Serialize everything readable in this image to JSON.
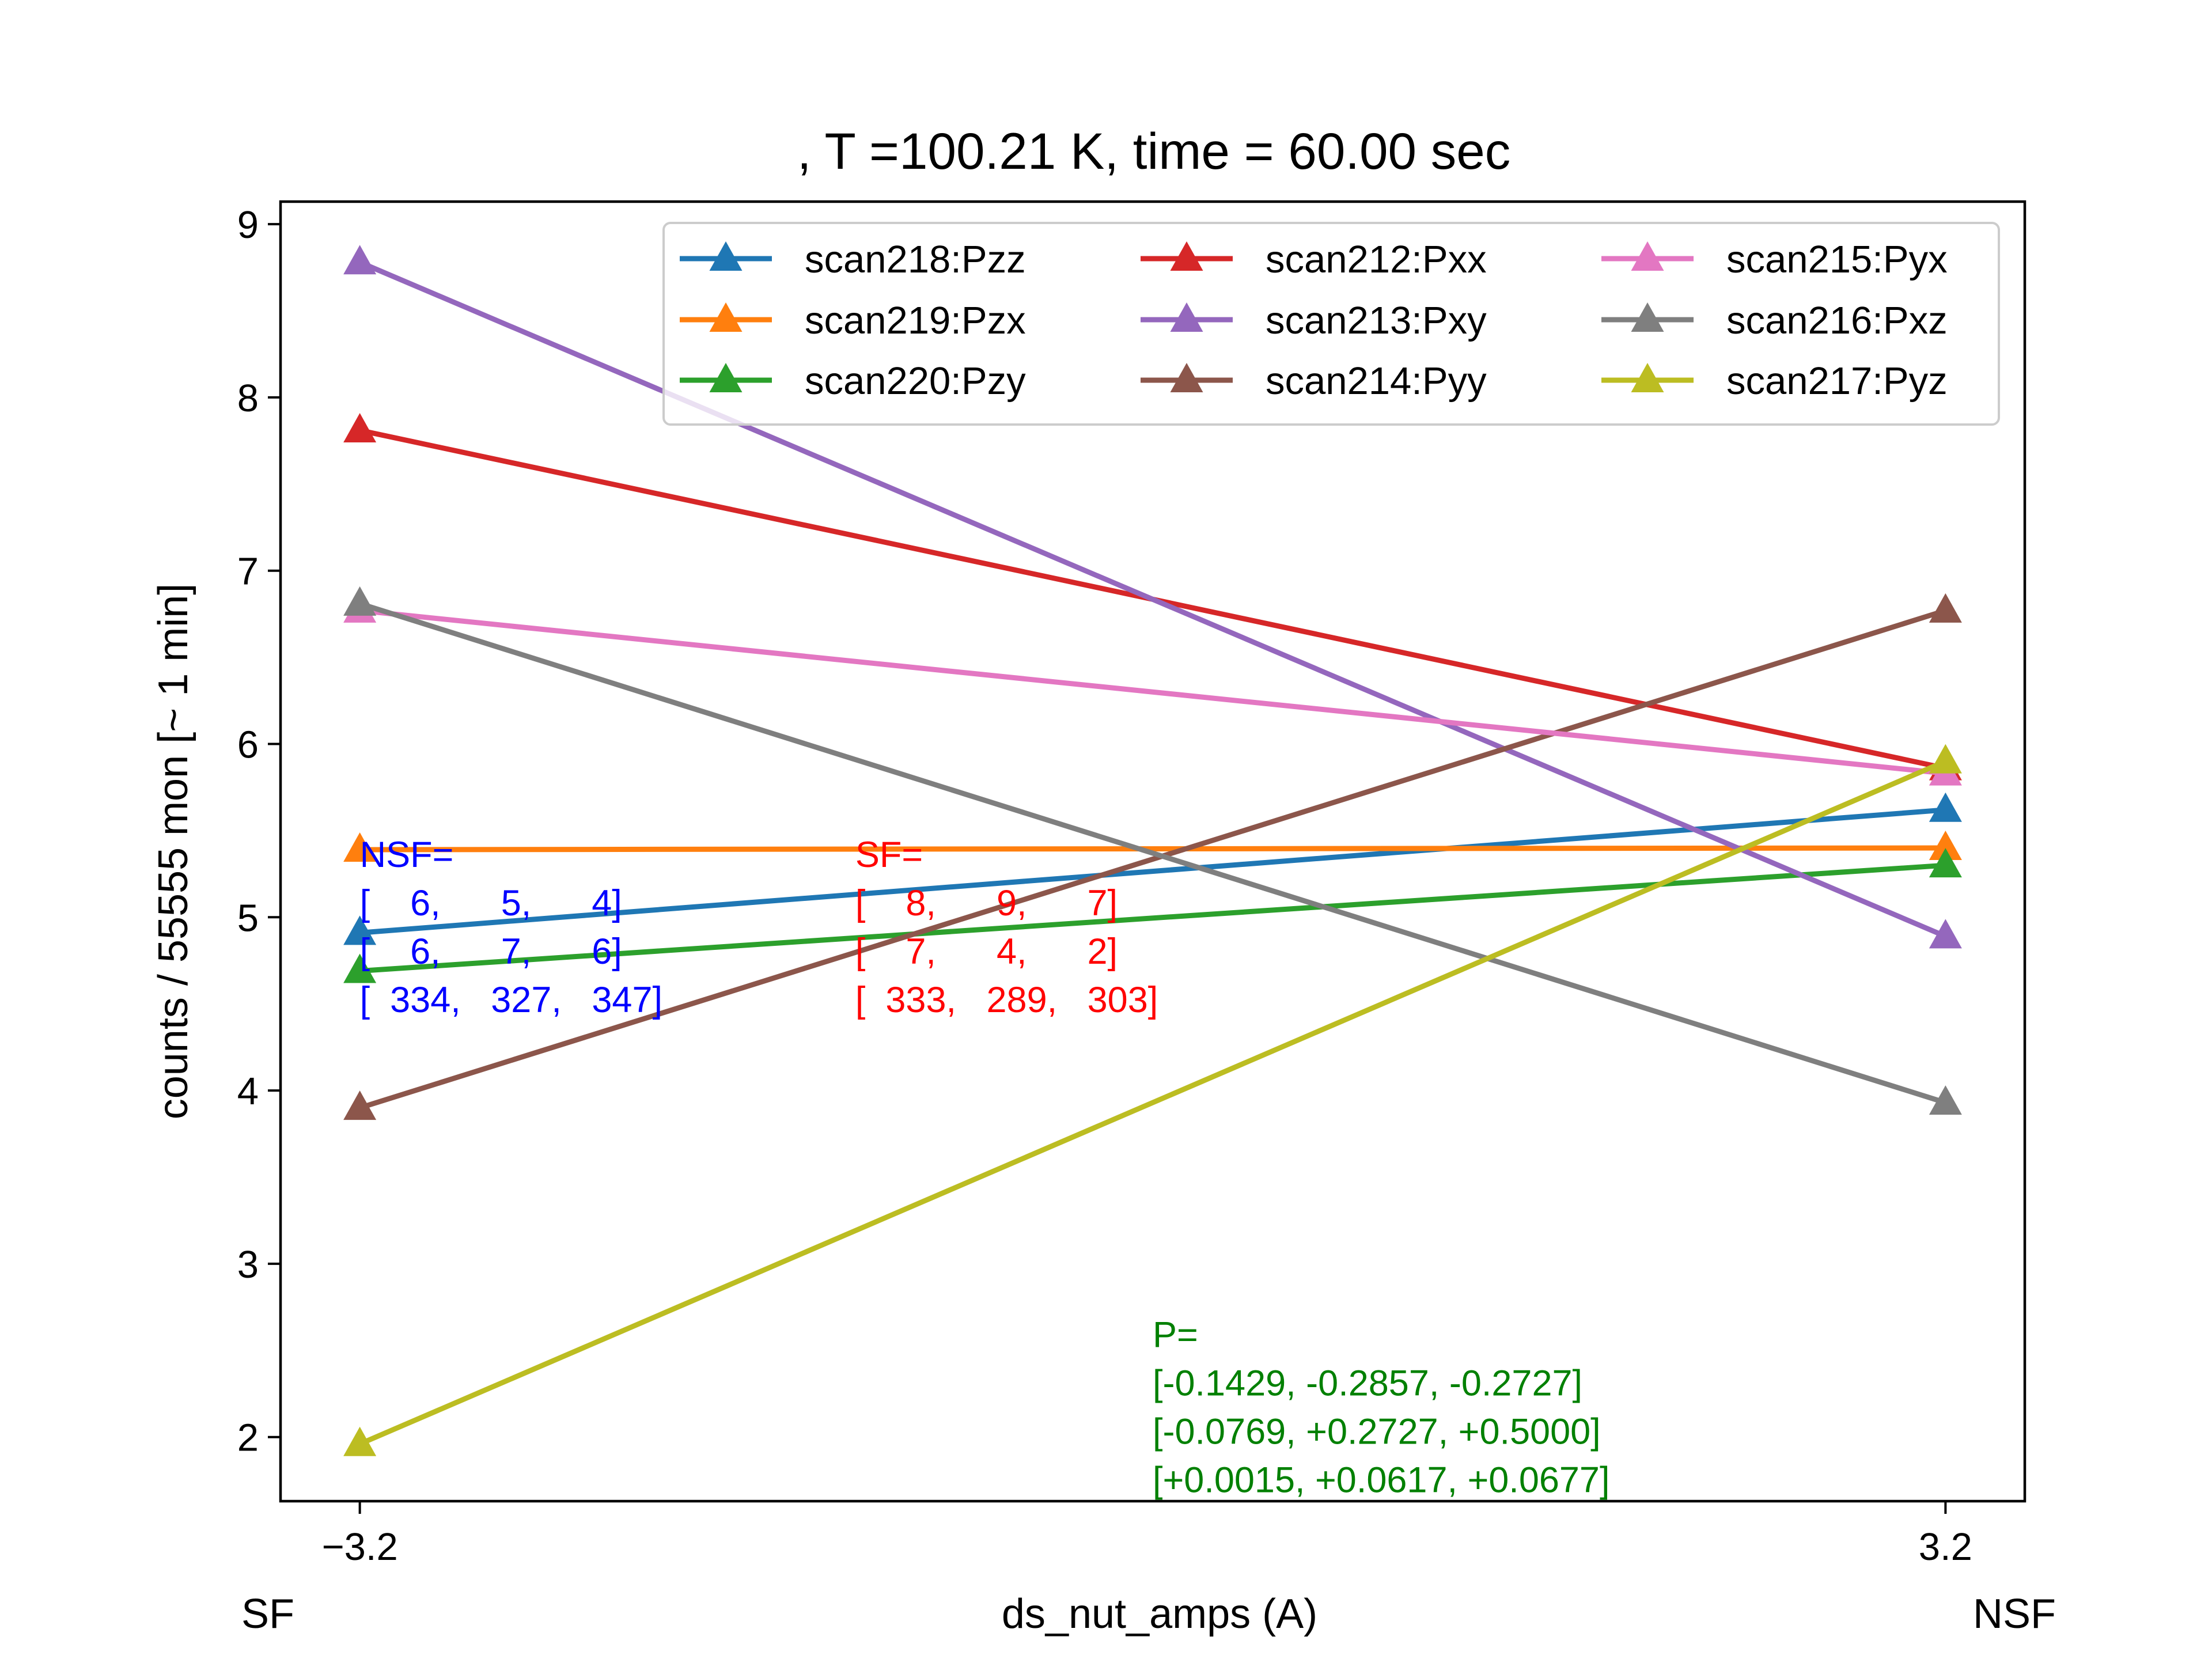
{
  "chart_data": {
    "type": "line",
    "title": ", T =100.21 K, time = 60.00 sec",
    "xlabel": "ds_nut_amps (A)",
    "ylabel": "counts / 55555 mon [~ 1 min]",
    "x": [
      -3.2,
      3.2
    ],
    "x_tick_labels": [
      "−3.2",
      "3.2"
    ],
    "x_side_labels": [
      "SF",
      "NSF"
    ],
    "xlim": [
      -3.52,
      3.52
    ],
    "ylim": [
      1.63,
      9.13
    ],
    "y_ticks": [
      2,
      3,
      4,
      5,
      6,
      7,
      8,
      9
    ],
    "grid": false,
    "legend_position": "upper-right",
    "legend_columns": 3,
    "marker": "triangle-up",
    "series": [
      {
        "name": "scan218:Pzz",
        "color": "#1f77b4",
        "values": [
          4.91,
          5.62
        ]
      },
      {
        "name": "scan219:Pzx",
        "color": "#ff7f0e",
        "values": [
          5.39,
          5.4
        ]
      },
      {
        "name": "scan220:Pzy",
        "color": "#2ca02c",
        "values": [
          4.69,
          5.3
        ]
      },
      {
        "name": "scan212:Pxx",
        "color": "#d62728",
        "values": [
          7.81,
          5.86
        ]
      },
      {
        "name": "scan213:Pxy",
        "color": "#9467bd",
        "values": [
          8.78,
          4.89
        ]
      },
      {
        "name": "scan214:Pyy",
        "color": "#8c564b",
        "values": [
          3.9,
          6.77
        ]
      },
      {
        "name": "scan215:Pyx",
        "color": "#e377c2",
        "values": [
          6.77,
          5.83
        ]
      },
      {
        "name": "scan216:Pxz",
        "color": "#7f7f7f",
        "values": [
          6.81,
          3.93
        ]
      },
      {
        "name": "scan217:Pyz",
        "color": "#bcbd22",
        "values": [
          1.96,
          5.9
        ]
      }
    ],
    "annotations": [
      {
        "color": "#0000ff",
        "x": -3.2,
        "y": 5.29,
        "lines": [
          "NSF=",
          "[    6,      5,      4]",
          "[    6,      7,      6]",
          "[  334,   327,   347]"
        ]
      },
      {
        "color": "#ff0000",
        "x": -1.2,
        "y": 5.29,
        "lines": [
          "SF=",
          "[    8,      9,      7]",
          "[    7,      4,      2]",
          "[  333,   289,   303]"
        ]
      },
      {
        "color": "#008000",
        "x": 0.0,
        "y": 2.52,
        "lines": [
          "P=",
          "[-0.1429, -0.2857, -0.2727]",
          "[-0.0769, +0.2727, +0.5000]",
          "[+0.0015, +0.0617, +0.0677]"
        ]
      }
    ]
  }
}
